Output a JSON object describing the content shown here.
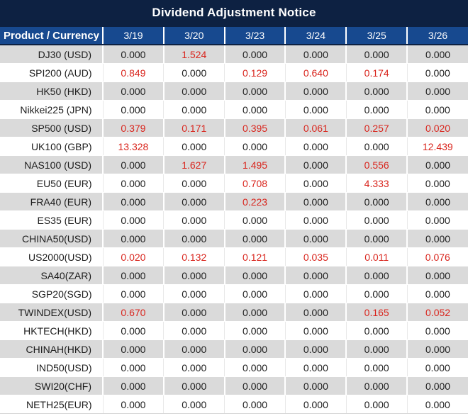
{
  "title": "Dividend Adjustment Notice",
  "colors": {
    "title_bar_bg": "#0d2142",
    "header_row_bg": "#17498f",
    "header_text": "#ffffff",
    "stripe_gray": "#dadada",
    "stripe_white": "#ffffff",
    "value_text": "#1c1c1c",
    "nonzero_value_text": "#d9251d"
  },
  "chart_data": {
    "type": "table",
    "title": "Dividend Adjustment Notice",
    "columns": [
      "Product / Currency",
      "3/19",
      "3/20",
      "3/23",
      "3/24",
      "3/25",
      "3/26"
    ],
    "rows": [
      {
        "product": "DJ30 (USD)",
        "values": [
          "0.000",
          "1.524",
          "0.000",
          "0.000",
          "0.000",
          "0.000"
        ]
      },
      {
        "product": "SPI200 (AUD)",
        "values": [
          "0.849",
          "0.000",
          "0.129",
          "0.640",
          "0.174",
          "0.000"
        ]
      },
      {
        "product": "HK50 (HKD)",
        "values": [
          "0.000",
          "0.000",
          "0.000",
          "0.000",
          "0.000",
          "0.000"
        ]
      },
      {
        "product": "Nikkei225 (JPN)",
        "values": [
          "0.000",
          "0.000",
          "0.000",
          "0.000",
          "0.000",
          "0.000"
        ]
      },
      {
        "product": "SP500 (USD)",
        "values": [
          "0.379",
          "0.171",
          "0.395",
          "0.061",
          "0.257",
          "0.020"
        ]
      },
      {
        "product": "UK100 (GBP)",
        "values": [
          "13.328",
          "0.000",
          "0.000",
          "0.000",
          "0.000",
          "12.439"
        ]
      },
      {
        "product": "NAS100 (USD)",
        "values": [
          "0.000",
          "1.627",
          "1.495",
          "0.000",
          "0.556",
          "0.000"
        ]
      },
      {
        "product": "EU50 (EUR)",
        "values": [
          "0.000",
          "0.000",
          "0.708",
          "0.000",
          "4.333",
          "0.000"
        ]
      },
      {
        "product": "FRA40 (EUR)",
        "values": [
          "0.000",
          "0.000",
          "0.223",
          "0.000",
          "0.000",
          "0.000"
        ]
      },
      {
        "product": "ES35 (EUR)",
        "values": [
          "0.000",
          "0.000",
          "0.000",
          "0.000",
          "0.000",
          "0.000"
        ]
      },
      {
        "product": "CHINA50(USD)",
        "values": [
          "0.000",
          "0.000",
          "0.000",
          "0.000",
          "0.000",
          "0.000"
        ]
      },
      {
        "product": "US2000(USD)",
        "values": [
          "0.020",
          "0.132",
          "0.121",
          "0.035",
          "0.011",
          "0.076"
        ]
      },
      {
        "product": "SA40(ZAR)",
        "values": [
          "0.000",
          "0.000",
          "0.000",
          "0.000",
          "0.000",
          "0.000"
        ]
      },
      {
        "product": "SGP20(SGD)",
        "values": [
          "0.000",
          "0.000",
          "0.000",
          "0.000",
          "0.000",
          "0.000"
        ]
      },
      {
        "product": "TWINDEX(USD)",
        "values": [
          "0.670",
          "0.000",
          "0.000",
          "0.000",
          "0.165",
          "0.052"
        ]
      },
      {
        "product": "HKTECH(HKD)",
        "values": [
          "0.000",
          "0.000",
          "0.000",
          "0.000",
          "0.000",
          "0.000"
        ]
      },
      {
        "product": "CHINAH(HKD)",
        "values": [
          "0.000",
          "0.000",
          "0.000",
          "0.000",
          "0.000",
          "0.000"
        ]
      },
      {
        "product": "IND50(USD)",
        "values": [
          "0.000",
          "0.000",
          "0.000",
          "0.000",
          "0.000",
          "0.000"
        ]
      },
      {
        "product": "SWI20(CHF)",
        "values": [
          "0.000",
          "0.000",
          "0.000",
          "0.000",
          "0.000",
          "0.000"
        ]
      },
      {
        "product": "NETH25(EUR)",
        "values": [
          "0.000",
          "0.000",
          "0.000",
          "0.000",
          "0.000",
          "0.000"
        ]
      }
    ]
  }
}
